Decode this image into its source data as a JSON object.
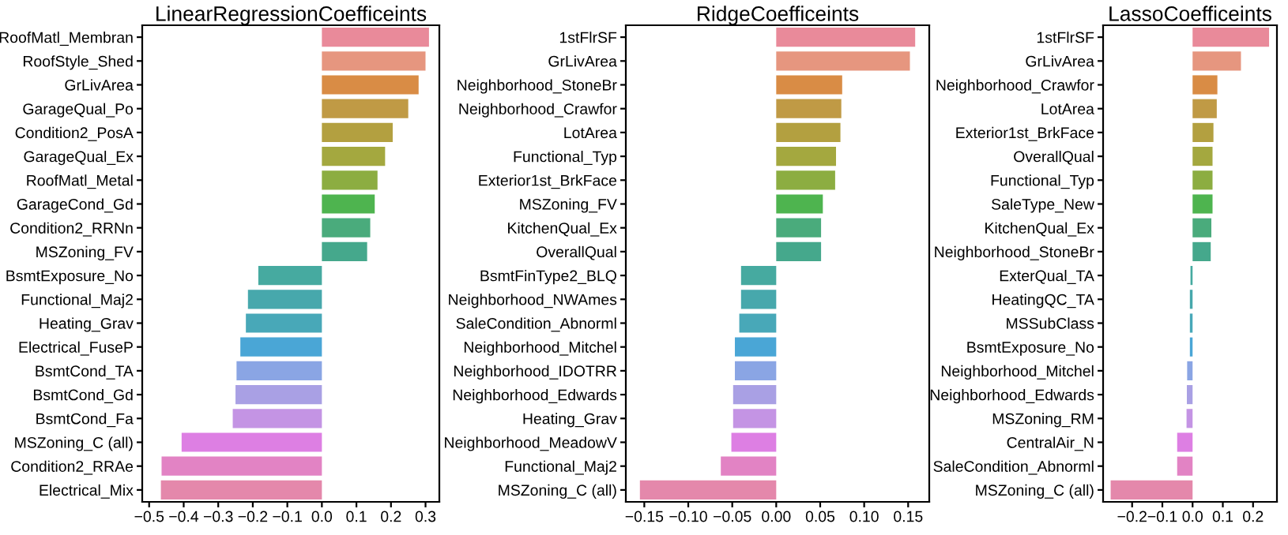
{
  "chart_data": [
    {
      "type": "bar",
      "orientation": "horizontal",
      "title": "LinearRegressionCoefficeints",
      "categories": [
        "RoofMatl_Membran",
        "RoofStyle_Shed",
        "GrLivArea",
        "GarageQual_Po",
        "Condition2_PosA",
        "GarageQual_Ex",
        "RoofMatl_Metal",
        "GarageCond_Gd",
        "Condition2_RRNn",
        "MSZoning_FV",
        "BsmtExposure_No",
        "Functional_Maj2",
        "Heating_Grav",
        "Electrical_FuseP",
        "BsmtCond_TA",
        "BsmtCond_Gd",
        "BsmtCond_Fa",
        "MSZoning_C (all)",
        "Condition2_RRAe",
        "Electrical_Mix"
      ],
      "values": [
        0.31,
        0.3,
        0.28,
        0.25,
        0.205,
        0.183,
        0.161,
        0.153,
        0.14,
        0.131,
        -0.184,
        -0.214,
        -0.22,
        -0.236,
        -0.247,
        -0.25,
        -0.258,
        -0.406,
        -0.464,
        -0.466
      ],
      "colors": [
        "#e98a9a",
        "#e6967f",
        "#d98c45",
        "#c09a45",
        "#b3a040",
        "#a4a83f",
        "#8cad41",
        "#4eb44f",
        "#4aab7c",
        "#45a88c",
        "#46aaa0",
        "#47a8ac",
        "#48a8b8",
        "#4aa6d6",
        "#8aa5e4",
        "#a9a0e4",
        "#c494e4",
        "#dd7fe3",
        "#e283c4",
        "#e488ab"
      ],
      "xlim": [
        -0.52,
        0.34
      ],
      "xticks": [
        -0.5,
        -0.4,
        -0.3,
        -0.2,
        -0.1,
        {
          "value": 0,
          "label": "0.0"
        },
        0.1,
        0.2,
        0.3
      ],
      "grid": false,
      "legend": false
    },
    {
      "type": "bar",
      "orientation": "horizontal",
      "title": "RidgeCoefficeints",
      "categories": [
        "1stFlrSF",
        "GrLivArea",
        "Neighborhood_StoneBr",
        "Neighborhood_Crawfor",
        "LotArea",
        "Functional_Typ",
        "Exterior1st_BrkFace",
        "MSZoning_FV",
        "KitchenQual_Ex",
        "OverallQual",
        "BsmtFinType2_BLQ",
        "Neighborhood_NWAmes",
        "SaleCondition_Abnorml",
        "Neighborhood_Mitchel",
        "Neighborhood_IDOTRR",
        "Neighborhood_Edwards",
        "Heating_Grav",
        "Neighborhood_MeadowV",
        "Functional_Maj2",
        "MSZoning_C (all)"
      ],
      "values": [
        0.158,
        0.152,
        0.075,
        0.074,
        0.073,
        0.068,
        0.067,
        0.053,
        0.051,
        0.051,
        -0.04,
        -0.04,
        -0.042,
        -0.047,
        -0.047,
        -0.049,
        -0.049,
        -0.051,
        -0.063,
        -0.155
      ],
      "colors": [
        "#e98a9a",
        "#e6967f",
        "#d98c45",
        "#c09a45",
        "#b3a040",
        "#a4a83f",
        "#8cad41",
        "#4eb44f",
        "#4aab7c",
        "#45a88c",
        "#46aaa0",
        "#47a8ac",
        "#48a8b8",
        "#4aa6d6",
        "#8aa5e4",
        "#a9a0e4",
        "#c494e4",
        "#dd7fe3",
        "#e283c4",
        "#e488ab"
      ],
      "xlim": [
        -0.171,
        0.174
      ],
      "xticks": [
        -0.15,
        {
          "value": -0.1,
          "label": "−0.10"
        },
        -0.05,
        {
          "value": 0,
          "label": "0.00"
        },
        0.05,
        {
          "value": 0.1,
          "label": "0.10"
        },
        0.15
      ],
      "grid": false,
      "legend": false
    },
    {
      "type": "bar",
      "orientation": "horizontal",
      "title": "LassoCoefficeints",
      "categories": [
        "1stFlrSF",
        "GrLivArea",
        "Neighborhood_Crawfor",
        "LotArea",
        "Exterior1st_BrkFace",
        "OverallQual",
        "Functional_Typ",
        "SaleType_New",
        "KitchenQual_Ex",
        "Neighborhood_StoneBr",
        "ExterQual_TA",
        "HeatingQC_TA",
        "MSSubClass",
        "BsmtExposure_No",
        "Neighborhood_Mitchel",
        "Neighborhood_Edwards",
        "MSZoning_RM",
        "CentralAir_N",
        "SaleCondition_Abnorml",
        "MSZoning_C (all)"
      ],
      "values": [
        0.253,
        0.16,
        0.082,
        0.08,
        0.069,
        0.066,
        0.066,
        0.066,
        0.062,
        0.06,
        -0.007,
        -0.009,
        -0.009,
        -0.009,
        -0.018,
        -0.019,
        -0.02,
        -0.051,
        -0.051,
        -0.271
      ],
      "colors": [
        "#e98a9a",
        "#e6967f",
        "#d98c45",
        "#c09a45",
        "#b3a040",
        "#a4a83f",
        "#8cad41",
        "#4eb44f",
        "#4aab7c",
        "#45a88c",
        "#46aaa0",
        "#47a8ac",
        "#48a8b8",
        "#4aa6d6",
        "#8aa5e4",
        "#a9a0e4",
        "#c494e4",
        "#dd7fe3",
        "#e283c4",
        "#e488ab"
      ],
      "xlim": [
        -0.296,
        0.279
      ],
      "xticks": [
        -0.2,
        -0.1,
        {
          "value": 0,
          "label": "0.0"
        },
        0.1,
        0.2
      ],
      "grid": false,
      "legend": false
    }
  ]
}
